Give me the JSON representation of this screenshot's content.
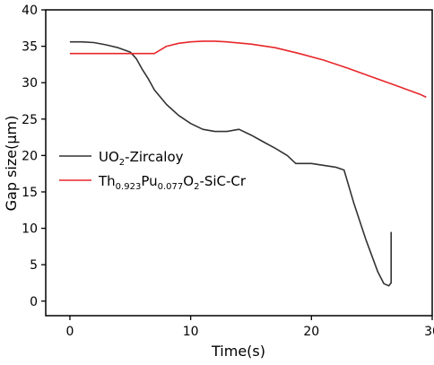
{
  "chart_data": {
    "type": "line",
    "xlabel": "Time(s)",
    "ylabel": "Gap size(μm)",
    "xlim": [
      -2,
      30
    ],
    "ylim": [
      -2,
      40
    ],
    "xticks": [
      0,
      10,
      20,
      30
    ],
    "yticks": [
      0,
      5,
      10,
      15,
      20,
      25,
      30,
      35,
      40
    ],
    "grid": false,
    "legend": {
      "placement": "middle-left",
      "entries": [
        {
          "series_index": 0,
          "text_main": "UO",
          "text_sub": "2",
          "text_tail": "-Zircaloy"
        },
        {
          "series_index": 1,
          "text_main": "Th",
          "text_sub1": "0.923",
          "text_mid1": "Pu",
          "text_sub2": "0.077",
          "text_mid2": "O",
          "text_sub3": "2",
          "text_tail": "-SiC-Cr"
        }
      ]
    },
    "series": [
      {
        "color": "#333333",
        "points": [
          [
            0,
            35.6
          ],
          [
            1,
            35.6
          ],
          [
            2,
            35.5
          ],
          [
            3,
            35.2
          ],
          [
            4,
            34.8
          ],
          [
            5,
            34.2
          ],
          [
            5.5,
            33.3
          ],
          [
            6,
            31.8
          ],
          [
            6.5,
            30.5
          ],
          [
            7,
            29.0
          ],
          [
            8,
            27.0
          ],
          [
            9,
            25.5
          ],
          [
            10,
            24.4
          ],
          [
            11,
            23.6
          ],
          [
            12,
            23.3
          ],
          [
            13,
            23.3
          ],
          [
            14,
            23.6
          ],
          [
            15,
            22.8
          ],
          [
            16,
            21.9
          ],
          [
            17,
            21.0
          ],
          [
            18,
            20.0
          ],
          [
            18.7,
            18.9
          ],
          [
            20,
            18.9
          ],
          [
            22,
            18.4
          ],
          [
            22.7,
            18.0
          ],
          [
            23.5,
            13.5
          ],
          [
            24.5,
            8.5
          ],
          [
            25.5,
            4.0
          ],
          [
            26,
            2.4
          ],
          [
            26.4,
            2.1
          ],
          [
            26.6,
            2.5
          ],
          [
            26.6,
            9.5
          ]
        ]
      },
      {
        "color": "#e8262a",
        "points": [
          [
            0,
            34.0
          ],
          [
            2,
            34.0
          ],
          [
            4,
            34.0
          ],
          [
            5,
            34.0
          ],
          [
            6,
            34.0
          ],
          [
            7,
            34.0
          ],
          [
            8,
            35.0
          ],
          [
            9,
            35.4
          ],
          [
            10,
            35.6
          ],
          [
            11,
            35.7
          ],
          [
            12,
            35.7
          ],
          [
            13,
            35.6
          ],
          [
            15,
            35.3
          ],
          [
            17,
            34.8
          ],
          [
            19,
            34.0
          ],
          [
            21,
            33.1
          ],
          [
            23,
            32.0
          ],
          [
            25,
            30.8
          ],
          [
            27,
            29.6
          ],
          [
            29,
            28.4
          ],
          [
            29.5,
            28.0
          ]
        ]
      }
    ]
  }
}
